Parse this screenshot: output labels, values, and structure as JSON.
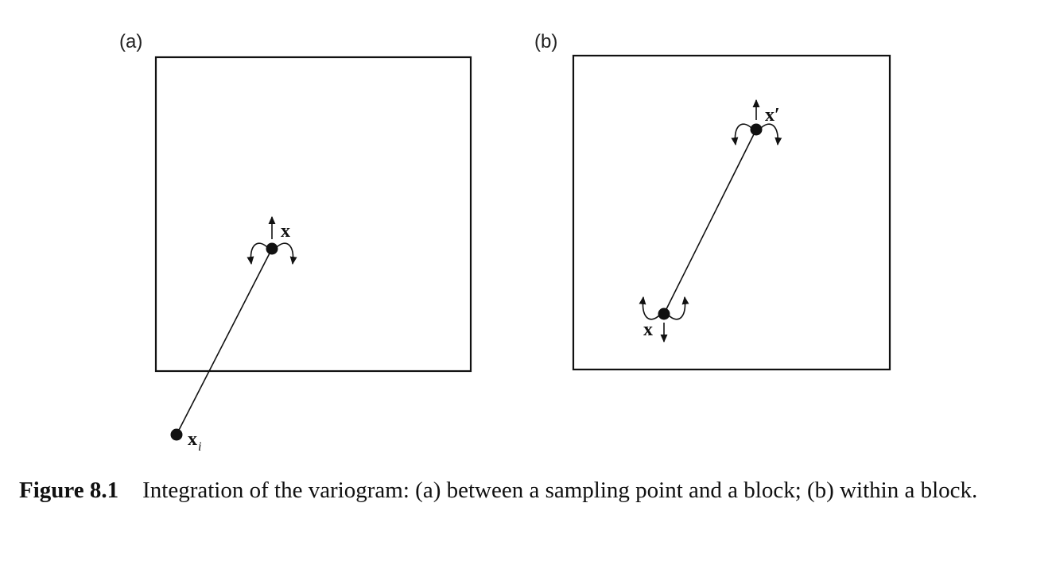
{
  "panels": [
    {
      "label": "(a)",
      "points": [
        {
          "symbol": "x",
          "subscript": ""
        },
        {
          "symbol": "x",
          "subscript": "i"
        }
      ]
    },
    {
      "label": "(b)",
      "points": [
        {
          "symbol": "x′",
          "subscript": ""
        },
        {
          "symbol": "x",
          "subscript": ""
        }
      ]
    }
  ],
  "caption": {
    "number": "Figure 8.1",
    "text": "Integration of the variogram: (a) between a sampling point and a block; (b) within a block."
  }
}
